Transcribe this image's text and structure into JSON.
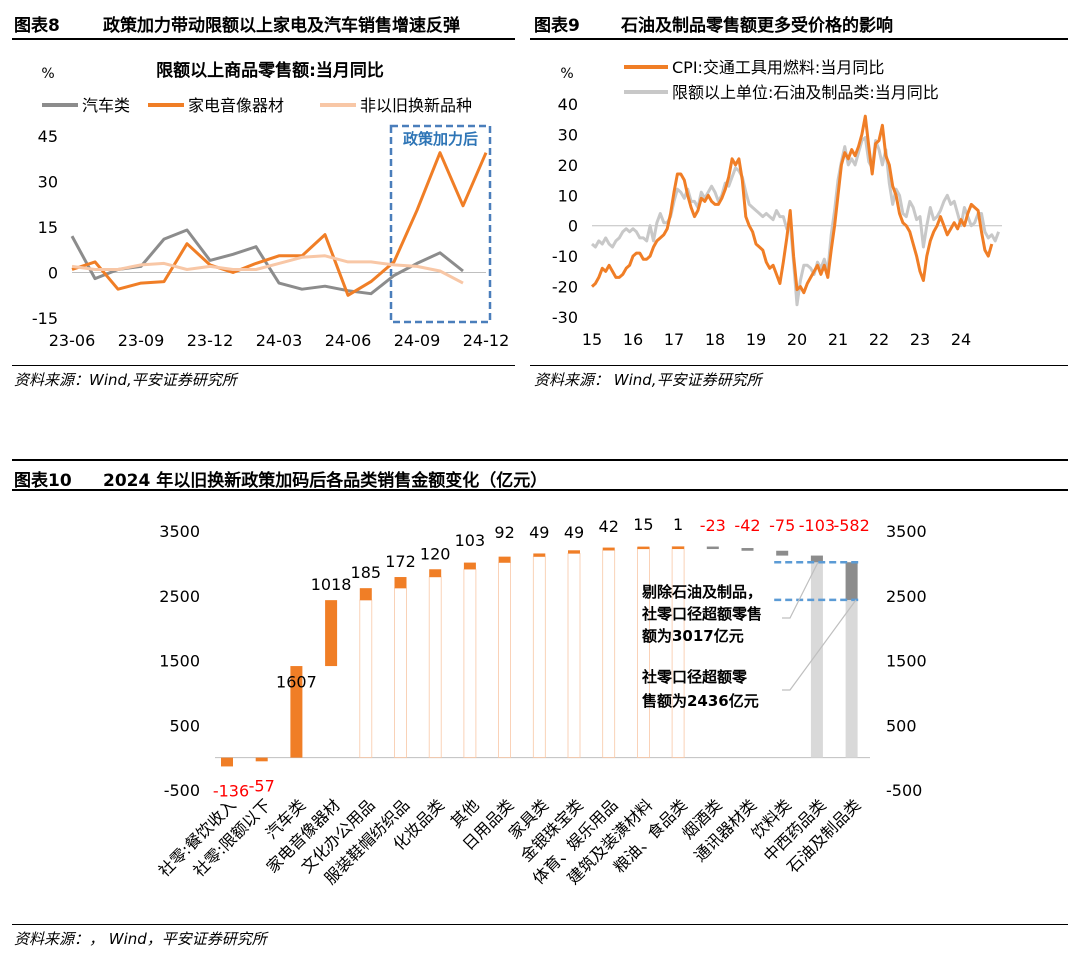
{
  "headers": {
    "fig8": {
      "num": "图表8",
      "title": "政策加力带动限额以上家电及汽车销售增速反弹"
    },
    "fig9": {
      "num": "图表9",
      "title": "石油及制品零售额更多受价格的影响"
    },
    "fig10": {
      "num": "图表10",
      "title": "2024 年以旧换新政策加码后各品类销售金额变化（亿元）"
    }
  },
  "sources": {
    "fig8": "资料来源：Wind,平安证券研究所",
    "fig9": "资料来源： Wind,平安证券研究所",
    "fig10": "资料来源：， Wind，平安证券研究所"
  },
  "chart_data": [
    {
      "type": "line",
      "title": "限额以上商品零售额:当月同比",
      "ylabel": "%",
      "ylim": [
        -15,
        45
      ],
      "yticks": [
        -15,
        0,
        15,
        30,
        45
      ],
      "x": [
        "23-06",
        "23-07",
        "23-08",
        "23-09",
        "23-10",
        "23-11",
        "23-12",
        "24-01",
        "24-02",
        "24-03",
        "24-04",
        "24-05",
        "24-06",
        "24-07",
        "24-08",
        "24-09",
        "24-10",
        "24-11",
        "24-12"
      ],
      "xticks": [
        "23-06",
        "23-09",
        "23-12",
        "24-03",
        "24-06",
        "24-09",
        "24-12"
      ],
      "legend_position": "top",
      "series": [
        {
          "name": "汽车类",
          "color": "#8c8c8c",
          "values": [
            12,
            -2,
            1,
            2,
            11,
            14,
            4,
            6,
            8.5,
            -3.5,
            -5.5,
            -4.5,
            -6,
            -7,
            -1,
            3,
            6.5,
            0.5,
            null
          ]
        },
        {
          "name": "家电音像器材",
          "color": "#f07e26",
          "values": [
            1,
            3.5,
            -5.5,
            -3.5,
            -3,
            9.5,
            2.5,
            0,
            3,
            5.5,
            5.5,
            12.5,
            -7.5,
            -3,
            3.5,
            20.5,
            39.5,
            22,
            39.5
          ]
        },
        {
          "name": "非以旧换新品种",
          "color": "#f8c7a6",
          "values": [
            2,
            1,
            1,
            2.5,
            3,
            1,
            2,
            1,
            1,
            3,
            5,
            5.5,
            3.5,
            3.5,
            2.5,
            2,
            0.5,
            -3.5,
            null
          ]
        }
      ],
      "annotation": "政策加力后"
    },
    {
      "type": "line",
      "ylabel": "%",
      "ylim": [
        -30,
        40
      ],
      "yticks": [
        -30,
        -20,
        -10,
        0,
        10,
        20,
        30,
        40
      ],
      "x_start": "2015-01",
      "xticks": [
        "15",
        "16",
        "17",
        "18",
        "19",
        "20",
        "21",
        "22",
        "23",
        "24"
      ],
      "legend_position": "top",
      "series": [
        {
          "name": "CPI:交通工具用燃料:当月同比",
          "color": "#f07e26",
          "values": [
            -20,
            -19,
            -17,
            -14,
            -15,
            -13,
            -15,
            -17,
            -17,
            -16,
            -14,
            -13,
            -10,
            -9,
            -9,
            -11,
            -11,
            -10,
            -7,
            -5,
            -4,
            -3,
            -1,
            4,
            11,
            17,
            17,
            15,
            10,
            6,
            3,
            5,
            9,
            8,
            10,
            8,
            7,
            7,
            9,
            12,
            16,
            22,
            20,
            22,
            15,
            3,
            0,
            -2,
            -6,
            -7,
            -8,
            -12,
            -14,
            -13,
            -16,
            -19,
            -12,
            -4,
            5,
            -10,
            -21,
            -20,
            -22,
            -19,
            -17,
            -15,
            -13,
            -16,
            -13,
            -17,
            -8,
            0,
            10,
            20,
            24,
            22,
            25,
            23,
            26,
            30,
            36,
            26,
            17,
            27,
            28,
            33,
            23,
            20,
            13,
            10,
            4,
            1,
            0,
            -2,
            -6,
            -10,
            -15,
            -18,
            -10,
            -5,
            -2,
            0,
            3,
            0,
            -3,
            -1,
            1,
            -1,
            2,
            0,
            4,
            7,
            6,
            5,
            -2,
            -8,
            -10,
            -6
          ]
        },
        {
          "name": "限额以上单位:石油及制品类:当月同比",
          "color": "#c8c8c8",
          "values": [
            -6,
            -7,
            -5,
            -6,
            -4,
            -6,
            -7,
            -5,
            -4,
            -2,
            -1,
            -2,
            -1,
            -2,
            -4,
            -4,
            -5,
            0,
            -5,
            1,
            4,
            1,
            1,
            3,
            8,
            12,
            11,
            9,
            12,
            8,
            8,
            6,
            11,
            9,
            11,
            13,
            11,
            8,
            10,
            14,
            13,
            16,
            19,
            18,
            16,
            11,
            7,
            6,
            5,
            4,
            3,
            4,
            3,
            2,
            5,
            3,
            3,
            -1,
            1,
            -12,
            -26,
            -18,
            -13,
            -13,
            -14,
            -16,
            -12,
            -14,
            -11,
            -15,
            -3,
            5,
            15,
            21,
            26,
            20,
            22,
            20,
            24,
            28,
            29,
            21,
            19,
            28,
            25,
            20,
            25,
            14,
            7,
            12,
            10,
            4,
            3,
            8,
            6,
            2,
            3,
            -7,
            0,
            6,
            2,
            3,
            5,
            8,
            10,
            7,
            8,
            4,
            0,
            6,
            3,
            0,
            1,
            4,
            4,
            -2,
            -4,
            -3,
            -5,
            -2
          ]
        }
      ]
    },
    {
      "type": "bar",
      "subtype": "waterfall",
      "ylim": [
        -500,
        3500
      ],
      "yticks": [
        -500,
        500,
        1500,
        2500,
        3500
      ],
      "categories": [
        "社零:餐饮收入",
        "社零:限额以下",
        "汽车类",
        "家电音像器材",
        "文化办公用品",
        "服装鞋帽纺织品",
        "化妆品类",
        "其他",
        "日用品类",
        "家具类",
        "金银珠宝类",
        "体育、娱乐用品",
        "建筑及装潢材料",
        "粮油、食品类",
        "烟酒类",
        "通讯器材类",
        "饮料类",
        "中西药品类",
        "石油及制品类"
      ],
      "values": [
        -136,
        -57,
        1607,
        1018,
        185,
        172,
        120,
        103,
        92,
        49,
        49,
        42,
        15,
        1,
        -23,
        -42,
        -75,
        -103,
        -582
      ],
      "value_labels": [
        "-136",
        "-57",
        "1607",
        "1018",
        "185",
        "172",
        "120",
        "103",
        "92",
        "49",
        "49",
        "42",
        "15",
        "1",
        "-23",
        "-42",
        "-75",
        "-103",
        "-582"
      ],
      "annotations": [
        {
          "text_lines": [
            "剔除石油及制品，",
            "社零口径超额零售",
            "额为3017亿元"
          ],
          "value": 3017
        },
        {
          "text_lines": [
            "社零口径超额零",
            "售额为2436亿元"
          ],
          "value": 2436
        }
      ],
      "colors": {
        "positive": "#f07e26",
        "negative_small": "#8c8c8c",
        "label_negative": "#ff0000",
        "highlight": "#d9d9d9",
        "dashed_line": "#5b9bd5",
        "box": "#4a7ebb"
      }
    }
  ]
}
